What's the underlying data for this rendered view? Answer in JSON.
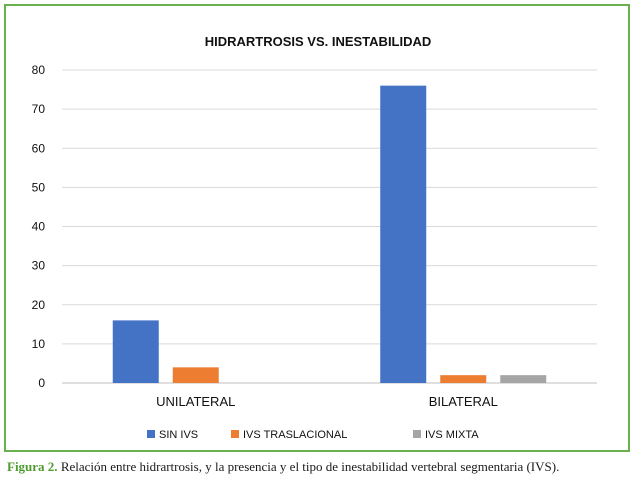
{
  "caption": {
    "label": "Figura 2.",
    "text": " Relación entre hidrartrosis, y la presencia y el tipo de inestabilidad vertebral segmentaria (IVS)."
  },
  "chart_data": {
    "type": "bar",
    "title": "HIDRARTROSIS VS. INESTABILIDAD",
    "categories": [
      "UNILATERAL",
      "BILATERAL"
    ],
    "series": [
      {
        "name": "SIN IVS",
        "color": "#4472c4",
        "values": [
          16,
          76
        ]
      },
      {
        "name": "IVS TRASLACIONAL",
        "color": "#ed7d31",
        "values": [
          4,
          2
        ]
      },
      {
        "name": "IVS MIXTA",
        "color": "#a5a5a5",
        "values": [
          0,
          2
        ]
      }
    ],
    "ylim": [
      0,
      80
    ],
    "yticks": [
      0,
      10,
      20,
      30,
      40,
      50,
      60,
      70,
      80
    ],
    "grid": true,
    "legend": "bottom",
    "xlabel": "",
    "ylabel": ""
  }
}
